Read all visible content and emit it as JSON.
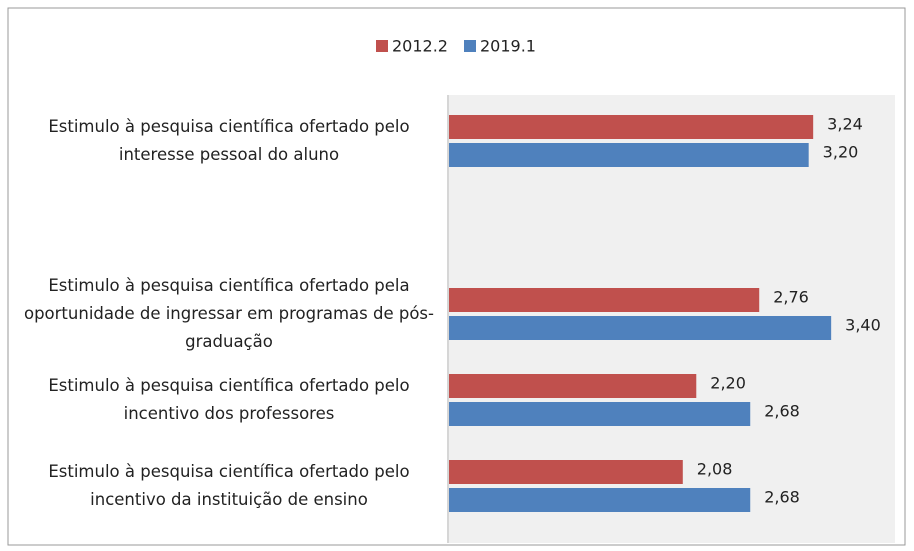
{
  "chart_data": {
    "type": "bar",
    "orientation": "horizontal",
    "categories": [
      "Estimulo à pesquisa científica ofertado pelo interesse pessoal do aluno",
      "Estimulo à pesquisa científica ofertado pela oportunidade de ingressar em programas de pós-graduação",
      "Estimulo à pesquisa científica ofertado pelo incentivo dos professores",
      "Estimulo à pesquisa científica ofertado pelo incentivo da instituição de ensino"
    ],
    "series": [
      {
        "name": "2012.2",
        "color": "#c0504d",
        "values": [
          3.24,
          2.76,
          2.2,
          2.08
        ],
        "value_labels": [
          "3,24",
          "2,76",
          "2,20",
          "2,08"
        ]
      },
      {
        "name": "2019.1",
        "color": "#4f81bd",
        "values": [
          3.2,
          3.4,
          2.68,
          2.68
        ],
        "value_labels": [
          "3,20",
          "3,40",
          "2,68",
          "2,68"
        ]
      }
    ],
    "legend": "top"
  }
}
